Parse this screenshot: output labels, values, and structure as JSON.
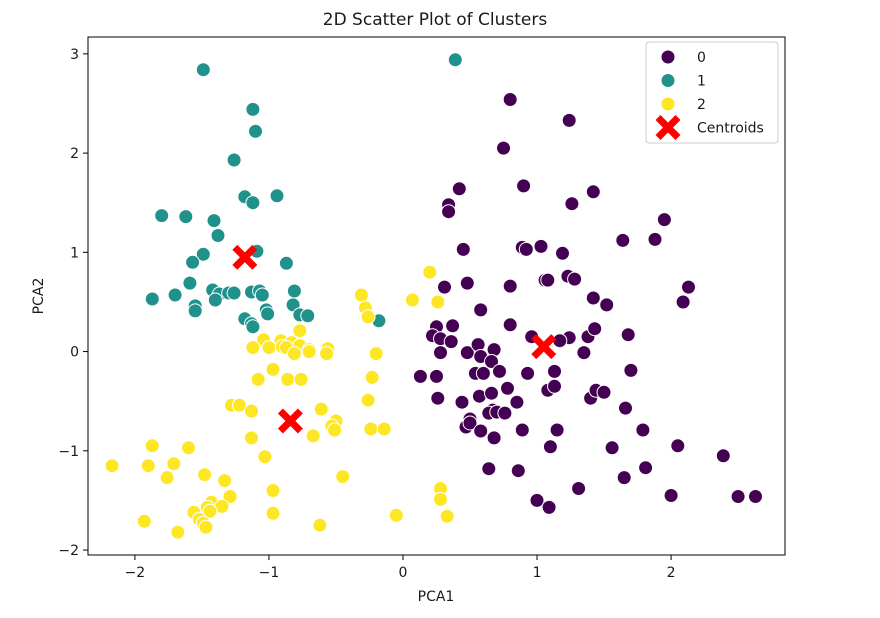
{
  "chart_data": {
    "type": "scatter",
    "title": "2D Scatter Plot of Clusters",
    "xlabel": "PCA1",
    "ylabel": "PCA2",
    "xlim": [
      -2.35,
      2.85
    ],
    "ylim": [
      -2.05,
      3.17
    ],
    "xticks": [
      -2,
      -1,
      0,
      1,
      2
    ],
    "yticks": [
      -2,
      -1,
      0,
      1,
      2,
      3
    ],
    "legend": {
      "position": "top-right",
      "labels": [
        "0",
        "1",
        "2",
        "Centroids"
      ]
    },
    "grid": false,
    "series": [
      {
        "name": "0",
        "color": "#440154",
        "points": [
          [
            0.8,
            2.54
          ],
          [
            1.24,
            2.33
          ],
          [
            0.75,
            2.05
          ],
          [
            0.9,
            1.67
          ],
          [
            1.42,
            1.61
          ],
          [
            0.42,
            1.64
          ],
          [
            0.34,
            1.48
          ],
          [
            0.34,
            1.41
          ],
          [
            1.26,
            1.49
          ],
          [
            1.95,
            1.33
          ],
          [
            1.64,
            1.12
          ],
          [
            1.88,
            1.13
          ],
          [
            0.89,
            1.05
          ],
          [
            0.92,
            1.03
          ],
          [
            1.03,
            1.06
          ],
          [
            0.45,
            1.03
          ],
          [
            1.19,
            0.99
          ],
          [
            0.48,
            0.69
          ],
          [
            0.31,
            0.65
          ],
          [
            0.8,
            0.66
          ],
          [
            1.06,
            0.72
          ],
          [
            1.08,
            0.72
          ],
          [
            1.23,
            0.76
          ],
          [
            1.28,
            0.73
          ],
          [
            1.42,
            0.54
          ],
          [
            1.52,
            0.47
          ],
          [
            2.13,
            0.65
          ],
          [
            2.09,
            0.5
          ],
          [
            0.58,
            0.42
          ],
          [
            0.25,
            0.25
          ],
          [
            0.37,
            0.26
          ],
          [
            0.22,
            0.16
          ],
          [
            0.28,
            0.13
          ],
          [
            0.8,
            0.27
          ],
          [
            0.36,
            0.1
          ],
          [
            1.24,
            0.14
          ],
          [
            1.38,
            0.15
          ],
          [
            1.43,
            0.23
          ],
          [
            1.68,
            0.17
          ],
          [
            0.28,
            -0.01
          ],
          [
            0.48,
            -0.01
          ],
          [
            0.56,
            0.07
          ],
          [
            0.58,
            -0.05
          ],
          [
            0.68,
            0.02
          ],
          [
            0.66,
            -0.1
          ],
          [
            0.54,
            -0.22
          ],
          [
            0.6,
            -0.22
          ],
          [
            0.72,
            -0.2
          ],
          [
            0.25,
            -0.25
          ],
          [
            0.13,
            -0.25
          ],
          [
            1.17,
            0.11
          ],
          [
            1.35,
            -0.01
          ],
          [
            1.7,
            -0.19
          ],
          [
            0.93,
            -0.22
          ],
          [
            1.13,
            -0.2
          ],
          [
            0.96,
            0.15
          ],
          [
            0.44,
            -0.51
          ],
          [
            0.57,
            -0.45
          ],
          [
            0.66,
            -0.42
          ],
          [
            0.78,
            -0.37
          ],
          [
            1.08,
            -0.39
          ],
          [
            1.13,
            -0.35
          ],
          [
            1.4,
            -0.47
          ],
          [
            1.44,
            -0.39
          ],
          [
            1.5,
            -0.41
          ],
          [
            0.26,
            -0.47
          ],
          [
            0.85,
            -0.51
          ],
          [
            0.67,
            -0.59
          ],
          [
            0.64,
            -0.62
          ],
          [
            0.7,
            -0.61
          ],
          [
            0.76,
            -0.62
          ],
          [
            0.5,
            -0.68
          ],
          [
            0.47,
            -0.76
          ],
          [
            0.5,
            -0.72
          ],
          [
            0.58,
            -0.8
          ],
          [
            0.68,
            -0.87
          ],
          [
            0.89,
            -0.79
          ],
          [
            1.15,
            -0.79
          ],
          [
            1.66,
            -0.57
          ],
          [
            1.79,
            -0.79
          ],
          [
            1.1,
            -0.96
          ],
          [
            1.56,
            -0.97
          ],
          [
            2.05,
            -0.95
          ],
          [
            0.64,
            -1.18
          ],
          [
            0.86,
            -1.2
          ],
          [
            1.81,
            -1.17
          ],
          [
            1.65,
            -1.27
          ],
          [
            2.39,
            -1.05
          ],
          [
            1.31,
            -1.38
          ],
          [
            2.0,
            -1.45
          ],
          [
            1.0,
            -1.5
          ],
          [
            1.09,
            -1.57
          ],
          [
            2.5,
            -1.46
          ],
          [
            2.63,
            -1.46
          ]
        ]
      },
      {
        "name": "1",
        "color": "#21918c",
        "points": [
          [
            0.39,
            2.94
          ],
          [
            -1.49,
            2.84
          ],
          [
            -1.12,
            2.44
          ],
          [
            -1.1,
            2.22
          ],
          [
            -1.26,
            1.93
          ],
          [
            -1.18,
            1.56
          ],
          [
            -0.94,
            1.57
          ],
          [
            -1.12,
            1.5
          ],
          [
            -1.8,
            1.37
          ],
          [
            -1.62,
            1.36
          ],
          [
            -1.41,
            1.32
          ],
          [
            -1.38,
            1.17
          ],
          [
            -1.49,
            0.98
          ],
          [
            -1.57,
            0.9
          ],
          [
            -1.09,
            1.01
          ],
          [
            -0.87,
            0.89
          ],
          [
            -1.7,
            0.57
          ],
          [
            -1.59,
            0.69
          ],
          [
            -1.42,
            0.62
          ],
          [
            -1.37,
            0.58
          ],
          [
            -1.4,
            0.52
          ],
          [
            -1.3,
            0.59
          ],
          [
            -1.26,
            0.59
          ],
          [
            -1.13,
            0.6
          ],
          [
            -1.07,
            0.61
          ],
          [
            -1.05,
            0.57
          ],
          [
            -0.81,
            0.61
          ],
          [
            -1.87,
            0.53
          ],
          [
            -1.55,
            0.46
          ],
          [
            -1.55,
            0.41
          ],
          [
            -1.02,
            0.42
          ],
          [
            -1.01,
            0.38
          ],
          [
            -0.82,
            0.47
          ],
          [
            -0.77,
            0.37
          ],
          [
            -0.71,
            0.36
          ],
          [
            -1.18,
            0.33
          ],
          [
            -1.13,
            0.28
          ],
          [
            -1.12,
            0.25
          ],
          [
            -0.18,
            0.31
          ]
        ]
      },
      {
        "name": "2",
        "color": "#fde725",
        "points": [
          [
            0.2,
            0.8
          ],
          [
            -0.31,
            0.57
          ],
          [
            0.07,
            0.52
          ],
          [
            0.26,
            0.5
          ],
          [
            -0.28,
            0.44
          ],
          [
            -0.26,
            0.35
          ],
          [
            -0.77,
            0.21
          ],
          [
            -1.04,
            0.12
          ],
          [
            -0.91,
            0.11
          ],
          [
            -0.83,
            0.09
          ],
          [
            -0.77,
            0.06
          ],
          [
            -0.7,
            0.02
          ],
          [
            -0.56,
            0.03
          ],
          [
            -0.57,
            -0.02
          ],
          [
            -1.12,
            0.04
          ],
          [
            -1.0,
            0.04
          ],
          [
            -0.9,
            0.05
          ],
          [
            -0.87,
            0.04
          ],
          [
            -0.81,
            -0.02
          ],
          [
            -0.7,
            0.0
          ],
          [
            -0.2,
            -0.02
          ],
          [
            -0.97,
            -0.18
          ],
          [
            -1.08,
            -0.28
          ],
          [
            -0.86,
            -0.28
          ],
          [
            -0.76,
            -0.28
          ],
          [
            -0.23,
            -0.26
          ],
          [
            -1.28,
            -0.54
          ],
          [
            -1.22,
            -0.54
          ],
          [
            -1.13,
            -0.6
          ],
          [
            -0.61,
            -0.58
          ],
          [
            -0.26,
            -0.49
          ],
          [
            -0.5,
            -0.7
          ],
          [
            -0.53,
            -0.75
          ],
          [
            -0.51,
            -0.79
          ],
          [
            -0.24,
            -0.78
          ],
          [
            -0.14,
            -0.78
          ],
          [
            -0.67,
            -0.85
          ],
          [
            -1.13,
            -0.87
          ],
          [
            -1.87,
            -0.95
          ],
          [
            -1.6,
            -0.97
          ],
          [
            -1.03,
            -1.06
          ],
          [
            -1.9,
            -1.15
          ],
          [
            -2.17,
            -1.15
          ],
          [
            -1.71,
            -1.13
          ],
          [
            -1.48,
            -1.24
          ],
          [
            -1.76,
            -1.27
          ],
          [
            -1.33,
            -1.3
          ],
          [
            -0.45,
            -1.26
          ],
          [
            -0.97,
            -1.4
          ],
          [
            -1.29,
            -1.46
          ],
          [
            -1.43,
            -1.52
          ],
          [
            -1.46,
            -1.57
          ],
          [
            -1.35,
            -1.56
          ],
          [
            -1.56,
            -1.62
          ],
          [
            -0.97,
            -1.63
          ],
          [
            -1.44,
            -1.61
          ],
          [
            -1.52,
            -1.69
          ],
          [
            -1.49,
            -1.73
          ],
          [
            -1.47,
            -1.77
          ],
          [
            -1.68,
            -1.82
          ],
          [
            -1.93,
            -1.71
          ],
          [
            -0.62,
            -1.75
          ],
          [
            -0.05,
            -1.65
          ],
          [
            0.28,
            -1.38
          ],
          [
            0.28,
            -1.49
          ],
          [
            0.33,
            -1.66
          ]
        ]
      }
    ],
    "centroids": {
      "name": "Centroids",
      "color": "#ff0000",
      "points": [
        [
          -1.18,
          0.95
        ],
        [
          -0.84,
          -0.7
        ],
        [
          1.05,
          0.05
        ]
      ]
    }
  }
}
